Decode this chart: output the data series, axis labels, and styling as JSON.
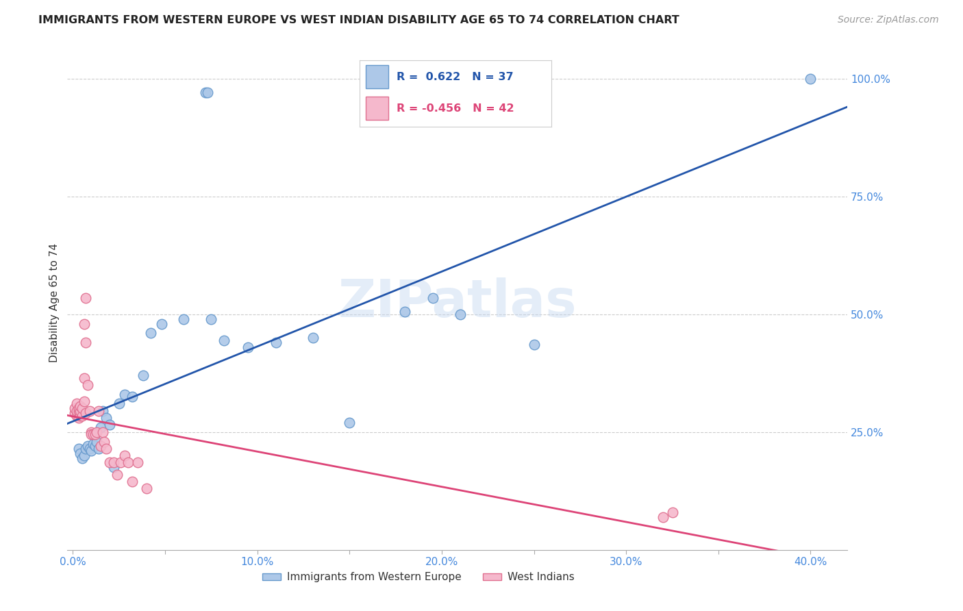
{
  "title": "IMMIGRANTS FROM WESTERN EUROPE VS WEST INDIAN DISABILITY AGE 65 TO 74 CORRELATION CHART",
  "source": "Source: ZipAtlas.com",
  "ylabel": "Disability Age 65 to 74",
  "x_tick_labels": [
    "0.0%",
    "",
    "10.0%",
    "",
    "20.0%",
    "",
    "30.0%",
    "",
    "40.0%"
  ],
  "x_tick_values": [
    0.0,
    0.05,
    0.1,
    0.15,
    0.2,
    0.25,
    0.3,
    0.35,
    0.4
  ],
  "y_tick_labels": [
    "100.0%",
    "75.0%",
    "50.0%",
    "25.0%"
  ],
  "y_tick_values": [
    1.0,
    0.75,
    0.5,
    0.25
  ],
  "y_min": 0.0,
  "y_max": 1.05,
  "x_min": -0.003,
  "x_max": 0.42,
  "blue_R": 0.622,
  "blue_N": 37,
  "pink_R": -0.456,
  "pink_N": 42,
  "legend_label_blue": "Immigrants from Western Europe",
  "legend_label_pink": "West Indians",
  "watermark": "ZIPatlas",
  "blue_scatter_x": [
    0.003,
    0.004,
    0.005,
    0.006,
    0.007,
    0.008,
    0.009,
    0.01,
    0.011,
    0.012,
    0.013,
    0.014,
    0.015,
    0.016,
    0.018,
    0.02,
    0.022,
    0.025,
    0.028,
    0.032,
    0.038,
    0.042,
    0.048,
    0.06,
    0.075,
    0.082,
    0.095,
    0.11,
    0.13,
    0.15,
    0.18,
    0.195,
    0.21,
    0.25,
    0.072,
    0.073,
    0.4
  ],
  "blue_scatter_y": [
    0.215,
    0.205,
    0.195,
    0.2,
    0.215,
    0.22,
    0.215,
    0.21,
    0.225,
    0.22,
    0.23,
    0.215,
    0.26,
    0.295,
    0.28,
    0.265,
    0.175,
    0.31,
    0.33,
    0.325,
    0.37,
    0.46,
    0.48,
    0.49,
    0.49,
    0.445,
    0.43,
    0.44,
    0.45,
    0.27,
    0.505,
    0.535,
    0.5,
    0.435,
    0.97,
    0.97,
    1.0
  ],
  "pink_scatter_x": [
    0.001,
    0.001,
    0.002,
    0.002,
    0.002,
    0.003,
    0.003,
    0.003,
    0.004,
    0.004,
    0.004,
    0.005,
    0.005,
    0.006,
    0.006,
    0.006,
    0.007,
    0.007,
    0.007,
    0.008,
    0.009,
    0.01,
    0.01,
    0.011,
    0.012,
    0.013,
    0.014,
    0.015,
    0.016,
    0.017,
    0.018,
    0.02,
    0.022,
    0.024,
    0.026,
    0.028,
    0.03,
    0.032,
    0.035,
    0.04,
    0.32,
    0.325
  ],
  "pink_scatter_y": [
    0.29,
    0.3,
    0.285,
    0.295,
    0.31,
    0.28,
    0.295,
    0.3,
    0.285,
    0.295,
    0.305,
    0.285,
    0.3,
    0.315,
    0.365,
    0.48,
    0.535,
    0.44,
    0.29,
    0.35,
    0.295,
    0.25,
    0.245,
    0.245,
    0.245,
    0.25,
    0.295,
    0.22,
    0.25,
    0.23,
    0.215,
    0.185,
    0.185,
    0.16,
    0.185,
    0.2,
    0.185,
    0.145,
    0.185,
    0.13,
    0.07,
    0.08
  ],
  "blue_color": "#adc8e8",
  "blue_edge_color": "#6699cc",
  "pink_color": "#f5b8cc",
  "pink_edge_color": "#e07090",
  "blue_line_color": "#2255aa",
  "pink_line_color": "#dd4477",
  "grid_color": "#cccccc",
  "background_color": "#ffffff",
  "title_color": "#222222",
  "axis_label_color": "#333333",
  "tick_label_color": "#4488dd",
  "source_color": "#999999"
}
